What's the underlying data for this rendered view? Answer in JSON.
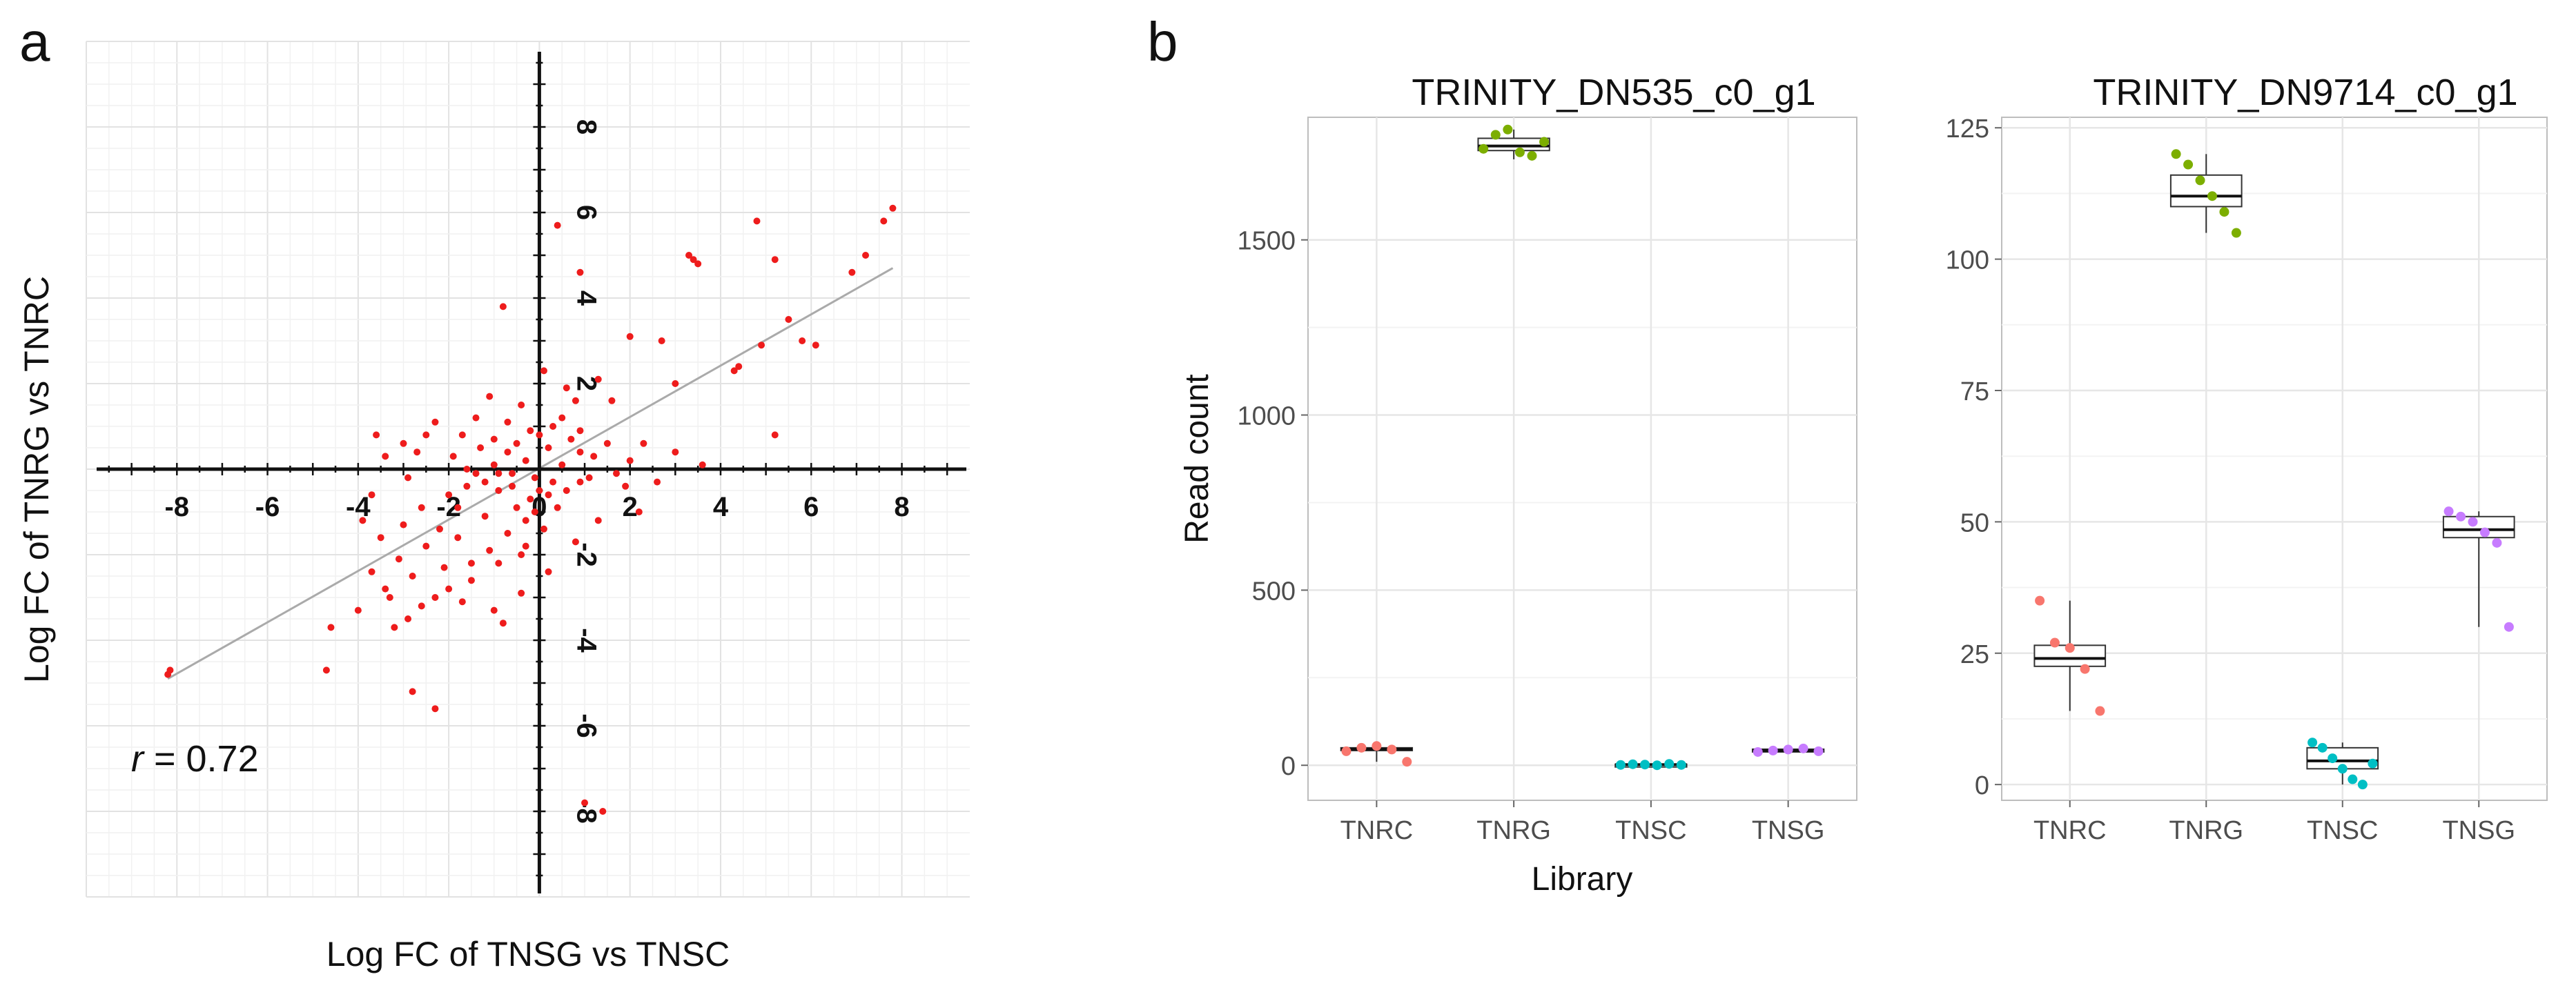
{
  "panels": {
    "a": {
      "label": "a"
    },
    "b": {
      "label": "b"
    }
  },
  "chart_data": [
    {
      "type": "scatter",
      "panel": "a",
      "title": "",
      "xlabel": "Log FC of TNSG vs TNSC",
      "ylabel": "Log FC of TNRG vs TNRC",
      "xlim": [
        -10,
        9.5
      ],
      "ylim": [
        -10,
        10
      ],
      "xticks": [
        -8,
        -6,
        -4,
        -2,
        0,
        2,
        4,
        6,
        8
      ],
      "yticks": [
        -8,
        -6,
        -4,
        -2,
        0,
        2,
        4,
        6,
        8
      ],
      "annotation": {
        "symbol": "r",
        "text": " = 0.72",
        "value": 0.72
      },
      "point_color": "#ee1c1c",
      "trend_color": "#aaaaaa",
      "trend_line": [
        [
          -8.2,
          -4.9
        ],
        [
          7.8,
          4.7
        ]
      ],
      "points": [
        [
          -8.2,
          -4.8
        ],
        [
          -8.15,
          -4.7
        ],
        [
          -4.6,
          -3.7
        ],
        [
          -4.7,
          -4.7
        ],
        [
          -2.8,
          -5.2
        ],
        [
          -2.3,
          -5.6
        ],
        [
          1.4,
          -8.0
        ],
        [
          1.0,
          -7.8
        ],
        [
          -0.8,
          3.8
        ],
        [
          0.1,
          2.3
        ],
        [
          0.4,
          5.7
        ],
        [
          0.9,
          4.6
        ],
        [
          3.4,
          4.9
        ],
        [
          3.3,
          5.0
        ],
        [
          3.5,
          4.8
        ],
        [
          4.8,
          5.8
        ],
        [
          5.2,
          4.9
        ],
        [
          6.9,
          4.6
        ],
        [
          7.2,
          5.0
        ],
        [
          7.8,
          6.1
        ],
        [
          7.6,
          5.8
        ],
        [
          4.4,
          2.4
        ],
        [
          4.3,
          2.3
        ],
        [
          5.5,
          3.5
        ],
        [
          5.8,
          3.0
        ],
        [
          6.1,
          2.9
        ],
        [
          4.9,
          2.9
        ],
        [
          2.7,
          3.0
        ],
        [
          3.0,
          2.0
        ],
        [
          5.2,
          0.8
        ],
        [
          2.0,
          3.1
        ],
        [
          1.3,
          2.1
        ],
        [
          1.6,
          1.6
        ],
        [
          0.8,
          1.6
        ],
        [
          0.5,
          1.2
        ],
        [
          0.6,
          1.9
        ],
        [
          0.3,
          1.0
        ],
        [
          0.7,
          0.7
        ],
        [
          0.9,
          0.4
        ],
        [
          1.2,
          0.3
        ],
        [
          2.0,
          0.2
        ],
        [
          2.3,
          0.6
        ],
        [
          3.0,
          0.4
        ],
        [
          3.6,
          0.1
        ],
        [
          2.6,
          -0.3
        ],
        [
          1.9,
          -0.4
        ],
        [
          0.9,
          -0.3
        ],
        [
          0.6,
          -0.5
        ],
        [
          0.2,
          -0.6
        ],
        [
          0.4,
          -0.9
        ],
        [
          0.1,
          -1.4
        ],
        [
          0.8,
          -1.7
        ],
        [
          -0.1,
          -0.2
        ],
        [
          -0.3,
          0.2
        ],
        [
          -0.5,
          0.6
        ],
        [
          -0.2,
          0.9
        ],
        [
          -0.7,
          0.4
        ],
        [
          -1.0,
          0.1
        ],
        [
          -1.2,
          -0.3
        ],
        [
          -0.9,
          -0.5
        ],
        [
          -0.5,
          -0.9
        ],
        [
          -0.3,
          -1.2
        ],
        [
          -0.7,
          -1.5
        ],
        [
          -1.1,
          -1.9
        ],
        [
          -1.5,
          -2.2
        ],
        [
          -1.8,
          -1.6
        ],
        [
          -2.1,
          -2.3
        ],
        [
          -2.5,
          -1.8
        ],
        [
          -2.8,
          -2.5
        ],
        [
          -3.1,
          -2.1
        ],
        [
          -3.4,
          -2.8
        ],
        [
          -3.7,
          -2.4
        ],
        [
          -3.3,
          -3.0
        ],
        [
          -2.9,
          -3.5
        ],
        [
          -1.7,
          -3.1
        ],
        [
          -1.0,
          -3.3
        ],
        [
          -0.8,
          -3.6
        ],
        [
          -0.4,
          -2.9
        ],
        [
          0.2,
          -2.4
        ],
        [
          -2.2,
          -1.4
        ],
        [
          -2.6,
          -0.9
        ],
        [
          -3.0,
          -1.3
        ],
        [
          -2.0,
          -0.6
        ],
        [
          -1.6,
          -0.4
        ],
        [
          -1.3,
          0.5
        ],
        [
          -1.9,
          0.3
        ],
        [
          -2.3,
          1.1
        ],
        [
          -3.0,
          0.6
        ],
        [
          -3.4,
          0.3
        ],
        [
          -3.7,
          -0.6
        ],
        [
          -3.9,
          -1.2
        ],
        [
          -1.4,
          1.2
        ],
        [
          -0.4,
          1.5
        ],
        [
          -1.1,
          1.7
        ],
        [
          -2.5,
          0.8
        ],
        [
          -1.8,
          -0.9
        ],
        [
          -1.2,
          -1.1
        ],
        [
          -0.6,
          -0.1
        ],
        [
          -0.9,
          -0.1
        ],
        [
          -1.4,
          -0.1
        ],
        [
          -1.6,
          0.0
        ],
        [
          -0.6,
          -0.4
        ],
        [
          -0.2,
          -0.7
        ],
        [
          0.0,
          -0.5
        ],
        [
          0.3,
          -0.3
        ],
        [
          0.5,
          0.1
        ],
        [
          0.2,
          0.5
        ],
        [
          0.0,
          0.8
        ],
        [
          1.1,
          -0.2
        ],
        [
          1.5,
          0.6
        ],
        [
          -0.3,
          -1.8
        ],
        [
          -4.0,
          -3.3
        ],
        [
          -3.2,
          -3.7
        ],
        [
          -2.6,
          -3.2
        ],
        [
          -2.0,
          -2.8
        ],
        [
          -1.5,
          -2.6
        ],
        [
          -0.9,
          -2.2
        ],
        [
          -0.4,
          -2.0
        ],
        [
          -2.3,
          -3.0
        ],
        [
          -3.6,
          0.8
        ],
        [
          -2.7,
          0.4
        ],
        [
          -1.0,
          0.7
        ],
        [
          -0.1,
          -1.0
        ],
        [
          1.3,
          -1.2
        ],
        [
          2.2,
          -1.0
        ],
        [
          1.7,
          -0.1
        ],
        [
          0.9,
          0.9
        ],
        [
          -0.7,
          1.1
        ],
        [
          -1.7,
          0.8
        ],
        [
          -2.9,
          -0.2
        ],
        [
          -3.5,
          -1.6
        ]
      ]
    },
    {
      "type": "box",
      "panel": "b",
      "title": "TRINITY_DN535_c0_g1",
      "xlabel": "Library",
      "ylabel": "Read count",
      "categories": [
        "TNRC",
        "TNRG",
        "TNSC",
        "TNSG"
      ],
      "colors": [
        "#f8766d",
        "#7cae00",
        "#00bfc4",
        "#c77cff"
      ],
      "ylim": [
        -100,
        1850
      ],
      "yticks": [
        0,
        500,
        1000,
        1500
      ],
      "box_stats": [
        {
          "category": "TNRC",
          "min": 10,
          "q1": 42,
          "median": 46,
          "q3": 50,
          "max": 58
        },
        {
          "category": "TNRG",
          "min": 1730,
          "q1": 1755,
          "median": 1768,
          "q3": 1790,
          "max": 1815
        },
        {
          "category": "TNSC",
          "min": 0,
          "q1": 1,
          "median": 2,
          "q3": 3,
          "max": 5
        },
        {
          "category": "TNSG",
          "min": 35,
          "q1": 38,
          "median": 42,
          "q3": 46,
          "max": 50
        }
      ],
      "points": [
        {
          "category": "TNRC",
          "values": [
            40,
            50,
            55,
            45,
            10
          ]
        },
        {
          "category": "TNRG",
          "values": [
            1760,
            1800,
            1815,
            1750,
            1740,
            1780
          ]
        },
        {
          "category": "TNSC",
          "values": [
            1,
            3,
            2,
            0,
            4,
            1
          ]
        },
        {
          "category": "TNSG",
          "values": [
            38,
            42,
            45,
            48,
            40
          ]
        }
      ]
    },
    {
      "type": "box",
      "panel": "b",
      "title": "TRINITY_DN9714_c0_g1",
      "xlabel": "",
      "ylabel": "",
      "categories": [
        "TNRC",
        "TNRG",
        "TNSC",
        "TNSG"
      ],
      "colors": [
        "#f8766d",
        "#7cae00",
        "#00bfc4",
        "#c77cff"
      ],
      "ylim": [
        -3,
        127
      ],
      "yticks": [
        0,
        25,
        50,
        75,
        100,
        125
      ],
      "box_stats": [
        {
          "category": "TNRC",
          "min": 14,
          "q1": 22.5,
          "median": 24,
          "q3": 26.5,
          "max": 35
        },
        {
          "category": "TNRG",
          "min": 105,
          "q1": 110,
          "median": 112,
          "q3": 116,
          "max": 120
        },
        {
          "category": "TNSC",
          "min": 0,
          "q1": 3,
          "median": 4.5,
          "q3": 7,
          "max": 8
        },
        {
          "category": "TNSG",
          "min": 30,
          "q1": 47,
          "median": 48.5,
          "q3": 51,
          "max": 52
        }
      ],
      "points": [
        {
          "category": "TNRC",
          "values": [
            35,
            27,
            26,
            22,
            14
          ]
        },
        {
          "category": "TNRG",
          "values": [
            120,
            118,
            115,
            112,
            109,
            105
          ]
        },
        {
          "category": "TNSC",
          "values": [
            8,
            7,
            5,
            3,
            1,
            0,
            4
          ]
        },
        {
          "category": "TNSG",
          "values": [
            52,
            51,
            50,
            48,
            46,
            30
          ]
        }
      ]
    }
  ]
}
